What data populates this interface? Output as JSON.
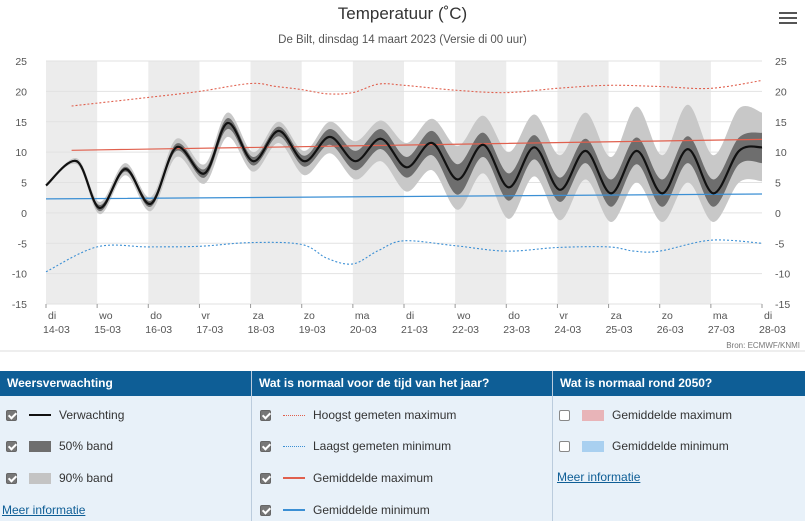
{
  "header": {
    "title": "Temperatuur (˚C)",
    "subtitle": "De Bilt, dinsdag 14 maart 2023 (Versie di 00 uur)",
    "menu_icon": "hamburger-menu-icon"
  },
  "chart_data": {
    "type": "line",
    "title": "Temperatuur (˚C)",
    "subtitle": "De Bilt, dinsdag 14 maart 2023 (Versie di 00 uur)",
    "ylim": [
      -15,
      25
    ],
    "yticks": [
      -15,
      -10,
      -5,
      0,
      5,
      10,
      15,
      20,
      25
    ],
    "x_days": 14,
    "x_labels": [
      {
        "day": "di",
        "date": "14-03"
      },
      {
        "day": "wo",
        "date": "15-03"
      },
      {
        "day": "do",
        "date": "16-03"
      },
      {
        "day": "vr",
        "date": "17-03"
      },
      {
        "day": "za",
        "date": "18-03"
      },
      {
        "day": "zo",
        "date": "19-03"
      },
      {
        "day": "ma",
        "date": "20-03"
      },
      {
        "day": "di",
        "date": "21-03"
      },
      {
        "day": "wo",
        "date": "22-03"
      },
      {
        "day": "do",
        "date": "23-03"
      },
      {
        "day": "vr",
        "date": "24-03"
      },
      {
        "day": "za",
        "date": "25-03"
      },
      {
        "day": "zo",
        "date": "26-03"
      },
      {
        "day": "ma",
        "date": "27-03"
      },
      {
        "day": "di",
        "date": "28-03"
      }
    ],
    "credit": "Bron: ECMWF/KNMI",
    "series": [
      {
        "name": "Verwachting",
        "color": "#111111",
        "x": [
          0,
          0.6,
          1.05,
          1.55,
          2.05,
          2.55,
          3.1,
          3.55,
          4.05,
          4.55,
          5.05,
          5.55,
          6.05,
          6.55,
          7.05,
          7.55,
          8.05,
          8.55,
          9.05,
          9.55,
          10.05,
          10.55,
          11.05,
          11.55,
          12.05,
          12.55,
          13.05,
          13.55,
          14
        ],
        "values": [
          4.5,
          8.5,
          0.8,
          7.2,
          1.5,
          10.8,
          6.5,
          14.8,
          8.5,
          13.5,
          8.5,
          12.5,
          8.5,
          12.2,
          7.5,
          11.5,
          5.5,
          11.2,
          4.2,
          10.8,
          3.8,
          10.2,
          3.2,
          10.2,
          3.2,
          10.5,
          3.2,
          10.2,
          10.8
        ]
      },
      {
        "name": "50% band",
        "color": "#6e6e6e",
        "x": [
          0,
          0.6,
          1.05,
          1.55,
          2.05,
          2.55,
          3.1,
          3.55,
          4.05,
          4.55,
          5.05,
          5.55,
          6.05,
          6.55,
          7.05,
          7.55,
          8.05,
          8.55,
          9.05,
          9.55,
          10.05,
          10.55,
          11.05,
          11.55,
          12.05,
          12.55,
          13.05,
          13.55,
          14
        ],
        "low": [
          4.5,
          8.3,
          0.3,
          6.8,
          1.0,
          10.2,
          5.8,
          13.8,
          7.8,
          12.6,
          7.6,
          11.2,
          7.0,
          10.5,
          5.8,
          9.5,
          3.0,
          9.2,
          2.0,
          8.8,
          1.8,
          8.2,
          1.0,
          8.0,
          1.0,
          8.2,
          1.0,
          8.0,
          8.2
        ],
        "high": [
          4.5,
          8.7,
          1.3,
          7.6,
          2.0,
          11.4,
          7.2,
          15.6,
          9.2,
          14.2,
          9.4,
          13.8,
          10.2,
          13.8,
          9.2,
          13.5,
          8.0,
          13.2,
          6.5,
          12.8,
          5.8,
          12.2,
          5.5,
          12.4,
          5.5,
          12.6,
          5.5,
          12.4,
          13.2
        ]
      },
      {
        "name": "90% band",
        "color": "#c8c8c8",
        "x": [
          0,
          0.6,
          1.05,
          1.55,
          2.05,
          2.55,
          3.1,
          3.55,
          4.05,
          4.55,
          5.05,
          5.55,
          6.05,
          6.55,
          7.05,
          7.55,
          8.05,
          8.55,
          9.05,
          9.55,
          10.05,
          10.55,
          11.05,
          11.55,
          12.05,
          12.55,
          13.05,
          13.55,
          14
        ],
        "low": [
          4.5,
          8.0,
          -0.2,
          6.2,
          0.3,
          9.2,
          4.8,
          12.5,
          6.8,
          11.5,
          6.2,
          9.8,
          5.5,
          8.5,
          3.5,
          7.0,
          0.5,
          6.5,
          -1.0,
          6.0,
          -1.2,
          5.5,
          -1.5,
          5.0,
          -1.5,
          5.0,
          -1.5,
          5.0,
          5.2
        ],
        "high": [
          4.5,
          9.0,
          1.8,
          8.2,
          2.6,
          12.2,
          8.0,
          16.5,
          10.0,
          15.0,
          10.2,
          15.0,
          11.8,
          15.2,
          11.5,
          15.5,
          11.0,
          16.0,
          10.0,
          16.2,
          9.5,
          16.5,
          9.2,
          17.5,
          9.5,
          17.8,
          9.5,
          17.2,
          16.5
        ]
      },
      {
        "name": "Hoogst gemeten maximum",
        "color": "#e0604e",
        "style": "dotted",
        "x": [
          0.5,
          2,
          3,
          4,
          4.5,
          5,
          5.5,
          6,
          6.5,
          7,
          8,
          9,
          10,
          11,
          12,
          13,
          14
        ],
        "values": [
          17.6,
          19,
          20,
          21.3,
          20.8,
          20.3,
          19.6,
          19.8,
          21.2,
          21,
          20.2,
          19.8,
          20.5,
          21,
          20.8,
          20.5,
          21.8
        ]
      },
      {
        "name": "Laagst gemeten minimum",
        "color": "#3b8fd4",
        "style": "dotted",
        "x": [
          0,
          1,
          2,
          3,
          4,
          5,
          5.5,
          6,
          6.5,
          7,
          8,
          9,
          10,
          11,
          11.5,
          12,
          13,
          14
        ],
        "values": [
          -9.7,
          -5.6,
          -5.6,
          -5.5,
          -4.9,
          -5.2,
          -7.5,
          -8.4,
          -6.2,
          -4.6,
          -5.4,
          -6.3,
          -5.7,
          -5.6,
          -6.3,
          -6.3,
          -4.5,
          -5
        ]
      },
      {
        "name": "Gemiddelde maximum",
        "color": "#e0604e",
        "style": "solid",
        "x": [
          0.5,
          14
        ],
        "values": [
          10.3,
          12.1
        ]
      },
      {
        "name": "Gemiddelde minimum",
        "color": "#3b8fd4",
        "style": "solid",
        "x": [
          0,
          14
        ],
        "values": [
          2.3,
          3.1
        ]
      }
    ]
  },
  "legend": {
    "forecast": {
      "header": "Weersverwachting",
      "items": [
        {
          "label": "Verwachting",
          "checked": true,
          "swatch": "line-black"
        },
        {
          "label": "50% band",
          "checked": true,
          "swatch": "band-dark"
        },
        {
          "label": "90% band",
          "checked": true,
          "swatch": "band-light"
        }
      ],
      "link": "Meer informatie"
    },
    "normal": {
      "header": "Wat is normaal voor de tijd van het jaar?",
      "items": [
        {
          "label": "Hoogst gemeten maximum",
          "checked": true,
          "swatch": "dotted-red"
        },
        {
          "label": "Laagst gemeten minimum",
          "checked": true,
          "swatch": "dotted-blue"
        },
        {
          "label": "Gemiddelde maximum",
          "checked": true,
          "swatch": "line-red"
        },
        {
          "label": "Gemiddelde minimum",
          "checked": true,
          "swatch": "line-blue"
        }
      ]
    },
    "future": {
      "header": "Wat is normaal rond 2050?",
      "items": [
        {
          "label": "Gemiddelde maximum",
          "checked": false,
          "swatch": "box-pink"
        },
        {
          "label": "Gemiddelde minimum",
          "checked": false,
          "swatch": "box-lightblue"
        }
      ],
      "link": "Meer informatie"
    }
  },
  "colors": {
    "header_bg": "#0e5e96",
    "legend_bg": "#e8f1f9",
    "accent_red": "#e0604e",
    "accent_blue": "#3b8fd4"
  }
}
